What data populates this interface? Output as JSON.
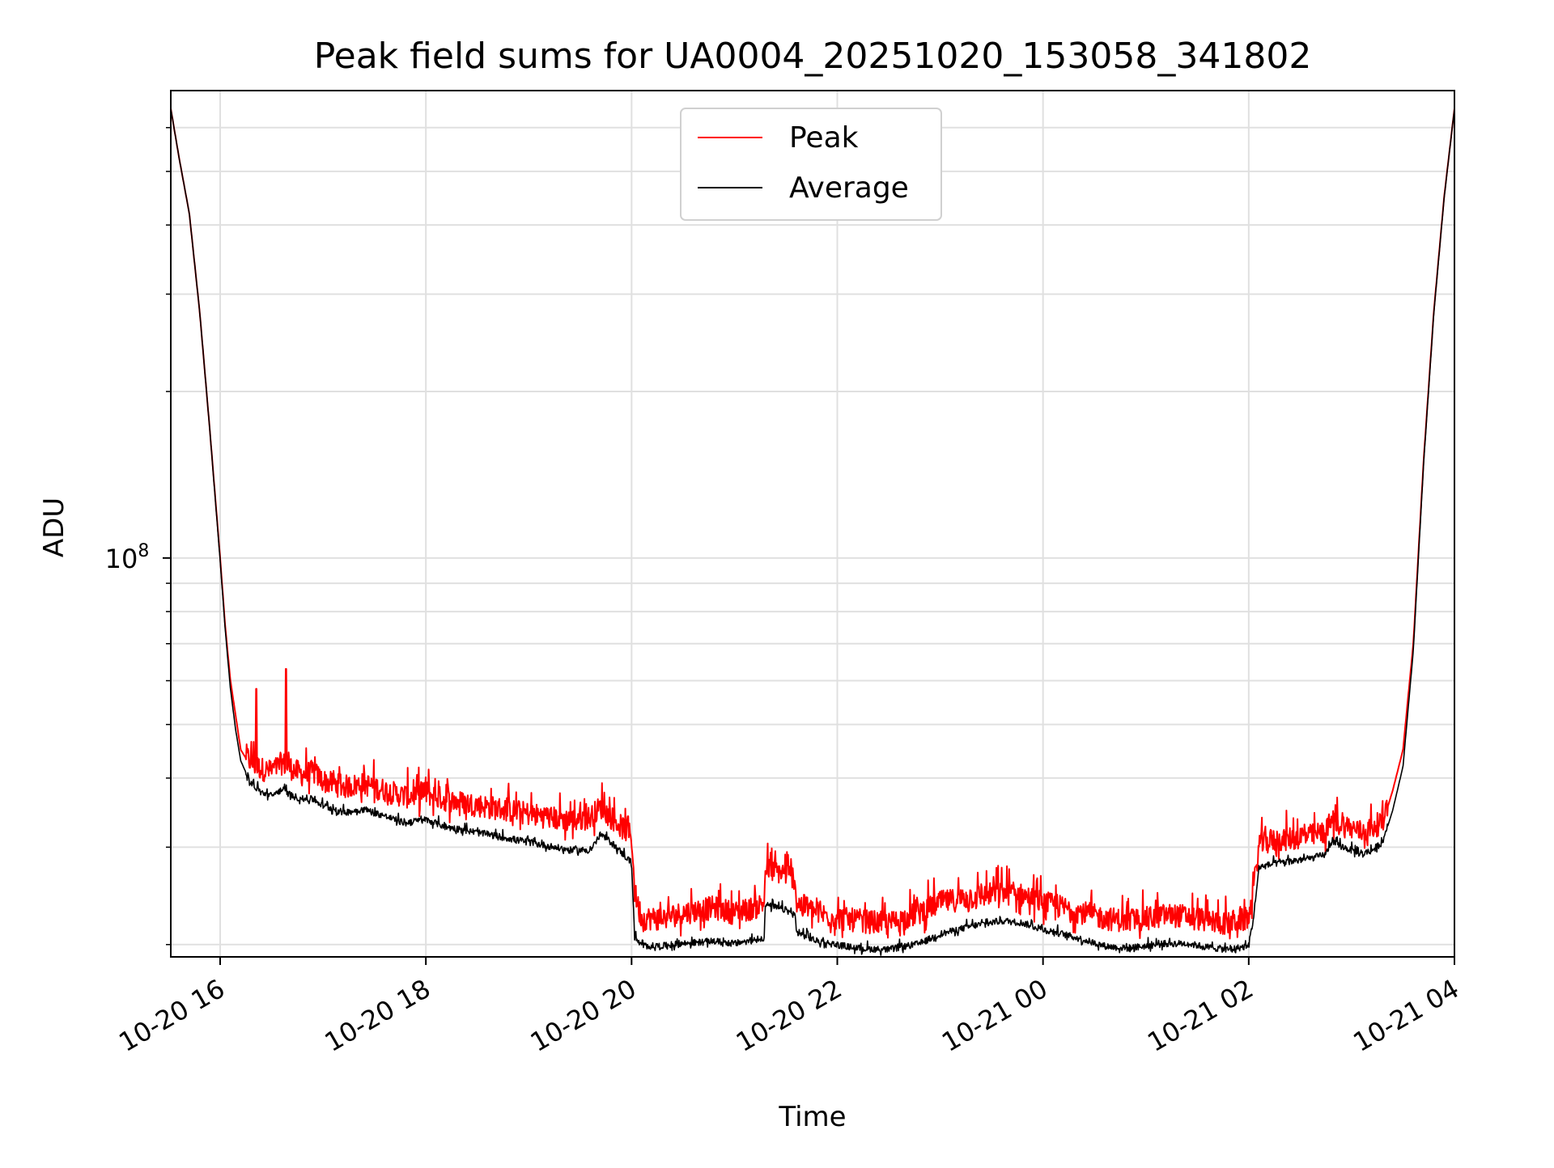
{
  "chart_data": {
    "type": "line",
    "title": "Peak field sums for UA0004_20251020_153058_341802",
    "xlabel": "Time",
    "ylabel": "ADU",
    "y_scale": "log",
    "ylim": [
      19000000,
      700000000
    ],
    "xlim_hours": [
      -0.48,
      12.0
    ],
    "grid": true,
    "legend_position": "upper center",
    "colors": {
      "peak": "#ff0000",
      "average": "#000000",
      "grid": "#e0e0e0",
      "axes": "#000000"
    },
    "x_ticks": [
      {
        "hour": 0,
        "label": "10-20 16"
      },
      {
        "hour": 2,
        "label": "10-20 18"
      },
      {
        "hour": 4,
        "label": "10-20 20"
      },
      {
        "hour": 6,
        "label": "10-20 22"
      },
      {
        "hour": 8,
        "label": "10-21 00"
      },
      {
        "hour": 10,
        "label": "10-21 02"
      },
      {
        "hour": 12,
        "label": "10-21 04"
      }
    ],
    "y_major_ticks": [
      {
        "value": 100000000,
        "base": "10",
        "exponent": "8"
      }
    ],
    "y_minor_ticks": [
      20000000,
      30000000,
      40000000,
      50000000,
      60000000,
      70000000,
      80000000,
      90000000,
      200000000,
      300000000,
      400000000,
      500000000,
      600000000
    ],
    "series": [
      {
        "name": "Peak",
        "noise": 0.1,
        "x_hours": [
          -0.48,
          -0.4,
          -0.3,
          -0.2,
          -0.1,
          0.0,
          0.05,
          0.1,
          0.15,
          0.2,
          0.3,
          0.4,
          0.5,
          0.6,
          0.7,
          0.8,
          0.9,
          1.0,
          1.2,
          1.4,
          1.6,
          1.8,
          2.0,
          2.2,
          2.4,
          2.6,
          2.8,
          3.0,
          3.2,
          3.4,
          3.6,
          3.7,
          3.8,
          4.0,
          4.03,
          4.1,
          4.3,
          4.5,
          4.8,
          5.0,
          5.2,
          5.29,
          5.3,
          5.5,
          5.59,
          5.6,
          5.8,
          6.0,
          6.2,
          6.5,
          6.8,
          7.0,
          7.3,
          7.6,
          7.8,
          8.0,
          8.2,
          8.4,
          8.6,
          8.8,
          9.0,
          9.2,
          9.4,
          9.6,
          9.8,
          10.0,
          10.05,
          10.1,
          10.3,
          10.6,
          10.75,
          10.8,
          11.0,
          11.1,
          11.2,
          11.3,
          11.4,
          11.5,
          11.6,
          11.7,
          11.8,
          11.9,
          12.0
        ],
        "values": [
          650000000,
          530000000,
          420000000,
          280000000,
          170000000,
          100000000,
          75000000,
          60000000,
          52000000,
          45000000,
          42000000,
          41000000,
          40500000,
          42000000,
          41000000,
          40000000,
          40500000,
          39000000,
          38000000,
          38500000,
          37500000,
          36500000,
          37000000,
          36000000,
          35500000,
          35000000,
          34500000,
          34000000,
          33500000,
          33000000,
          33500000,
          35000000,
          33500000,
          31000000,
          24500000,
          22000000,
          22000000,
          22500000,
          23000000,
          22500000,
          23000000,
          23500000,
          27000000,
          26500000,
          26000000,
          23500000,
          22500000,
          22000000,
          21800000,
          21500000,
          22500000,
          23500000,
          24000000,
          24500000,
          24200000,
          23500000,
          23000000,
          22500000,
          22000000,
          21800000,
          22000000,
          22300000,
          22200000,
          21800000,
          21500000,
          22000000,
          25000000,
          30000000,
          30500000,
          31000000,
          31500000,
          33000000,
          32000000,
          31500000,
          32000000,
          33000000,
          38000000,
          45000000,
          70000000,
          150000000,
          280000000,
          450000000,
          650000000
        ]
      },
      {
        "name": "Average",
        "noise": 0.028,
        "x_hours": [
          -0.48,
          -0.4,
          -0.3,
          -0.2,
          -0.1,
          0.0,
          0.05,
          0.1,
          0.15,
          0.2,
          0.3,
          0.4,
          0.5,
          0.6,
          0.7,
          0.8,
          0.9,
          1.0,
          1.2,
          1.4,
          1.6,
          1.8,
          2.0,
          2.2,
          2.4,
          2.6,
          2.8,
          3.0,
          3.2,
          3.4,
          3.6,
          3.7,
          3.8,
          4.0,
          4.03,
          4.1,
          4.3,
          4.5,
          4.8,
          5.0,
          5.2,
          5.29,
          5.3,
          5.5,
          5.59,
          5.6,
          5.8,
          6.0,
          6.2,
          6.5,
          6.8,
          7.0,
          7.3,
          7.6,
          7.8,
          8.0,
          8.2,
          8.4,
          8.6,
          8.8,
          9.0,
          9.2,
          9.4,
          9.6,
          9.8,
          10.0,
          10.05,
          10.1,
          10.3,
          10.6,
          10.75,
          10.8,
          11.0,
          11.1,
          11.2,
          11.3,
          11.4,
          11.5,
          11.6,
          11.7,
          11.8,
          11.9,
          12.0
        ],
        "values": [
          650000000,
          530000000,
          420000000,
          280000000,
          170000000,
          99000000,
          74000000,
          58000000,
          49000000,
          43000000,
          39000000,
          37500000,
          37000000,
          38000000,
          37000000,
          36500000,
          36500000,
          35500000,
          34500000,
          35000000,
          34000000,
          33000000,
          33500000,
          32500000,
          32000000,
          31500000,
          31000000,
          30500000,
          30000000,
          29500000,
          29500000,
          31500000,
          30500000,
          28000000,
          20500000,
          19800000,
          19800000,
          20000000,
          20200000,
          20000000,
          20300000,
          20500000,
          23500000,
          23000000,
          22500000,
          21000000,
          20200000,
          19900000,
          19600000,
          19500000,
          20000000,
          20800000,
          21500000,
          22000000,
          21800000,
          21200000,
          20800000,
          20300000,
          19800000,
          19600000,
          19800000,
          20000000,
          20000000,
          19700000,
          19500000,
          19800000,
          22500000,
          27500000,
          28000000,
          28500000,
          29000000,
          30500000,
          29500000,
          29000000,
          29500000,
          30500000,
          35000000,
          42000000,
          68000000,
          148000000,
          278000000,
          448000000,
          650000000
        ]
      }
    ],
    "spikes": [
      {
        "series": "Peak",
        "hour": 0.35,
        "value": 58000000
      },
      {
        "series": "Peak",
        "hour": 0.64,
        "value": 63000000
      }
    ]
  }
}
